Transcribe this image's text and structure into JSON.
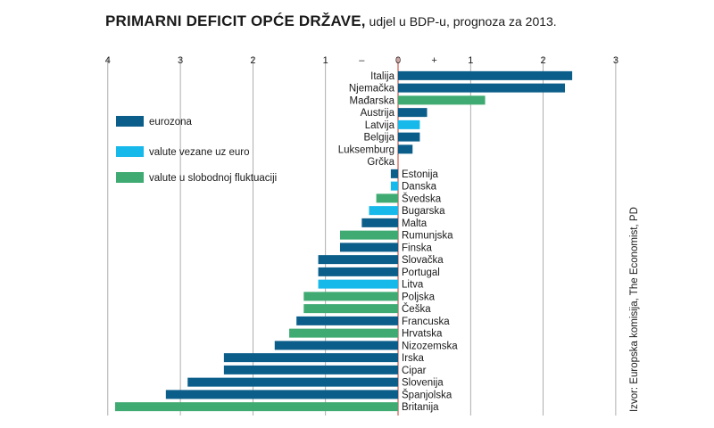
{
  "title": {
    "main": "PRIMARNI DEFICIT OPĆE DRŽAVE,",
    "sub": " udjel u BDP-u, prognoza za 2013."
  },
  "source": "Izvor: Europska komisija, The Economist, PD",
  "colors": {
    "eurozona": "#0b5e8a",
    "vezane": "#17b8ea",
    "fluktuacija": "#3faa72",
    "axis_zero": "#c0392b",
    "grid": "#9a9a9a"
  },
  "legend": [
    {
      "key": "eurozona",
      "label": "eurozona"
    },
    {
      "key": "vezane",
      "label": "valute vezane uz euro"
    },
    {
      "key": "fluktuacija",
      "label": "valute u slobodnoj fluktuaciji"
    }
  ],
  "chart_data": {
    "type": "bar",
    "orientation": "horizontal",
    "title": "PRIMARNI DEFICIT OPĆE DRŽAVE, udjel u BDP-u, prognoza za 2013.",
    "xlim": [
      -4,
      3
    ],
    "ticks": [
      {
        "value": -4,
        "label": "4"
      },
      {
        "value": -3,
        "label": "3"
      },
      {
        "value": -2,
        "label": "2"
      },
      {
        "value": -1,
        "label": "1"
      },
      {
        "value": -0.5,
        "label": "–"
      },
      {
        "value": 0,
        "label": "0"
      },
      {
        "value": 0.5,
        "label": "+"
      },
      {
        "value": 1,
        "label": "1"
      },
      {
        "value": 2,
        "label": "2"
      },
      {
        "value": 3,
        "label": "3"
      }
    ],
    "categories": [
      "Italija",
      "Njemačka",
      "Mađarska",
      "Austrija",
      "Latvija",
      "Belgija",
      "Luksemburg",
      "Grčka",
      "Estonija",
      "Danska",
      "Švedska",
      "Bugarska",
      "Malta",
      "Rumunjska",
      "Finska",
      "Slovačka",
      "Portugal",
      "Litva",
      "Poljska",
      "Češka",
      "Francuska",
      "Hrvatska",
      "Nizozemska",
      "Irska",
      "Cipar",
      "Slovenija",
      "Španjolska",
      "Britanija"
    ],
    "values": [
      2.4,
      2.3,
      1.2,
      0.4,
      0.3,
      0.3,
      0.2,
      0.0,
      -0.1,
      -0.1,
      -0.3,
      -0.4,
      -0.5,
      -0.8,
      -0.8,
      -1.1,
      -1.1,
      -1.1,
      -1.3,
      -1.3,
      -1.4,
      -1.5,
      -1.7,
      -2.4,
      -2.4,
      -2.9,
      -3.2,
      -3.9
    ],
    "groups": [
      "eurozona",
      "eurozona",
      "fluktuacija",
      "eurozona",
      "vezane",
      "eurozona",
      "eurozona",
      "eurozona",
      "eurozona",
      "vezane",
      "fluktuacija",
      "vezane",
      "eurozona",
      "fluktuacija",
      "eurozona",
      "eurozona",
      "eurozona",
      "vezane",
      "fluktuacija",
      "fluktuacija",
      "eurozona",
      "fluktuacija",
      "eurozona",
      "eurozona",
      "eurozona",
      "eurozona",
      "eurozona",
      "fluktuacija"
    ]
  }
}
